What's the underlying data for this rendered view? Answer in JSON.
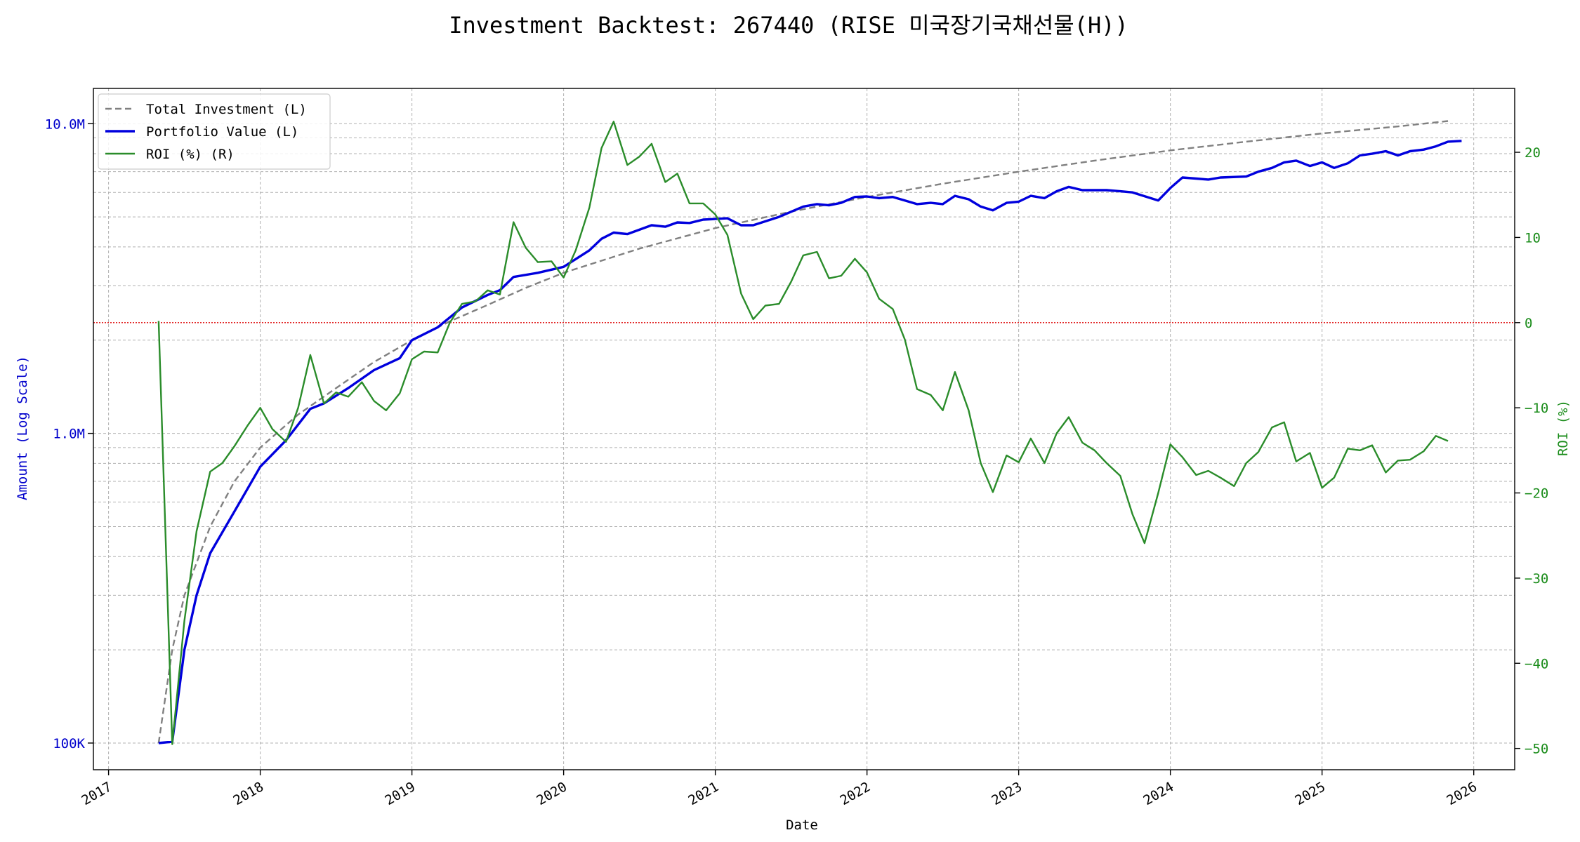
{
  "chart_data": {
    "type": "line",
    "title": "Investment Backtest: 267440 (RISE 미국장기국채선물(H))",
    "xlabel": "Date",
    "ylabel_left": "Amount (Log Scale)",
    "ylabel_right": "ROI (%)",
    "y_left_scale": "log",
    "y_left_ticks": [
      {
        "value": 100000,
        "label": "100K"
      },
      {
        "value": 1000000,
        "label": "1.0M"
      },
      {
        "value": 10000000,
        "label": "10.0M"
      }
    ],
    "y_left_range": [
      82000,
      13000000
    ],
    "y_right_ticks": [
      -50,
      -40,
      -30,
      -20,
      -10,
      0,
      10,
      20
    ],
    "y_right_range": [
      -52.5,
      27.5
    ],
    "x_ticks": [
      "2017",
      "2018",
      "2019",
      "2020",
      "2021",
      "2022",
      "2023",
      "2024",
      "2025",
      "2026"
    ],
    "x_range": [
      2016.9,
      2026.27
    ],
    "grid": true,
    "legend_position": "upper-left",
    "zero_reference_line": {
      "roi": 0,
      "color": "#dd0000"
    },
    "series": [
      {
        "name": "Total Investment (L)",
        "axis": "left",
        "color": "#808080",
        "style": "dashed",
        "points": [
          [
            2017.33,
            100000
          ],
          [
            2017.42,
            200000
          ],
          [
            2017.5,
            300000
          ],
          [
            2017.67,
            500000
          ],
          [
            2017.83,
            700000
          ],
          [
            2018.0,
            900000
          ],
          [
            2018.25,
            1150000
          ],
          [
            2018.5,
            1400000
          ],
          [
            2018.75,
            1700000
          ],
          [
            2019.0,
            2000000
          ],
          [
            2019.25,
            2300000
          ],
          [
            2019.5,
            2600000
          ],
          [
            2019.75,
            2950000
          ],
          [
            2020.0,
            3300000
          ],
          [
            2020.5,
            3950000
          ],
          [
            2021.0,
            4600000
          ],
          [
            2021.5,
            5200000
          ],
          [
            2022.0,
            5800000
          ],
          [
            2022.5,
            6400000
          ],
          [
            2023.0,
            7000000
          ],
          [
            2023.5,
            7600000
          ],
          [
            2024.0,
            8200000
          ],
          [
            2024.5,
            8750000
          ],
          [
            2025.0,
            9300000
          ],
          [
            2025.5,
            9800000
          ],
          [
            2025.83,
            10200000
          ]
        ]
      },
      {
        "name": "Portfolio Value (L)",
        "axis": "left",
        "color": "#0000dd",
        "style": "solid",
        "points": [
          [
            2017.33,
            100000
          ],
          [
            2017.42,
            101000
          ],
          [
            2017.5,
            200000
          ],
          [
            2017.58,
            300000
          ],
          [
            2017.67,
            410000
          ],
          [
            2017.83,
            560000
          ],
          [
            2018.0,
            780000
          ],
          [
            2018.17,
            950000
          ],
          [
            2018.33,
            1200000
          ],
          [
            2018.42,
            1250000
          ],
          [
            2018.58,
            1400000
          ],
          [
            2018.75,
            1600000
          ],
          [
            2018.92,
            1750000
          ],
          [
            2019.0,
            2000000
          ],
          [
            2019.17,
            2200000
          ],
          [
            2019.33,
            2550000
          ],
          [
            2019.5,
            2800000
          ],
          [
            2019.58,
            2900000
          ],
          [
            2019.67,
            3200000
          ],
          [
            2019.83,
            3300000
          ],
          [
            2020.0,
            3450000
          ],
          [
            2020.17,
            3900000
          ],
          [
            2020.25,
            4250000
          ],
          [
            2020.33,
            4450000
          ],
          [
            2020.42,
            4400000
          ],
          [
            2020.58,
            4700000
          ],
          [
            2020.67,
            4650000
          ],
          [
            2020.75,
            4800000
          ],
          [
            2020.83,
            4780000
          ],
          [
            2020.92,
            4900000
          ],
          [
            2021.08,
            4950000
          ],
          [
            2021.17,
            4700000
          ],
          [
            2021.25,
            4700000
          ],
          [
            2021.42,
            5000000
          ],
          [
            2021.58,
            5400000
          ],
          [
            2021.67,
            5500000
          ],
          [
            2021.75,
            5450000
          ],
          [
            2021.83,
            5550000
          ],
          [
            2021.92,
            5800000
          ],
          [
            2022.0,
            5820000
          ],
          [
            2022.08,
            5750000
          ],
          [
            2022.17,
            5800000
          ],
          [
            2022.25,
            5650000
          ],
          [
            2022.33,
            5500000
          ],
          [
            2022.42,
            5550000
          ],
          [
            2022.5,
            5500000
          ],
          [
            2022.58,
            5850000
          ],
          [
            2022.67,
            5700000
          ],
          [
            2022.75,
            5400000
          ],
          [
            2022.83,
            5250000
          ],
          [
            2022.92,
            5550000
          ],
          [
            2023.0,
            5600000
          ],
          [
            2023.08,
            5850000
          ],
          [
            2023.17,
            5750000
          ],
          [
            2023.25,
            6050000
          ],
          [
            2023.33,
            6250000
          ],
          [
            2023.42,
            6100000
          ],
          [
            2023.58,
            6100000
          ],
          [
            2023.67,
            6050000
          ],
          [
            2023.75,
            6000000
          ],
          [
            2023.92,
            5650000
          ],
          [
            2024.0,
            6200000
          ],
          [
            2024.08,
            6700000
          ],
          [
            2024.17,
            6650000
          ],
          [
            2024.25,
            6600000
          ],
          [
            2024.33,
            6700000
          ],
          [
            2024.5,
            6750000
          ],
          [
            2024.58,
            7000000
          ],
          [
            2024.67,
            7200000
          ],
          [
            2024.75,
            7500000
          ],
          [
            2024.83,
            7600000
          ],
          [
            2024.92,
            7300000
          ],
          [
            2025.0,
            7500000
          ],
          [
            2025.08,
            7200000
          ],
          [
            2025.17,
            7450000
          ],
          [
            2025.25,
            7900000
          ],
          [
            2025.33,
            8000000
          ],
          [
            2025.42,
            8150000
          ],
          [
            2025.5,
            7900000
          ],
          [
            2025.58,
            8150000
          ],
          [
            2025.67,
            8250000
          ],
          [
            2025.75,
            8450000
          ],
          [
            2025.83,
            8750000
          ],
          [
            2025.92,
            8800000
          ]
        ]
      },
      {
        "name": "ROI (%) (R)",
        "axis": "right",
        "color": "#2a8c2a",
        "style": "solid",
        "points": [
          [
            2017.33,
            0.2
          ],
          [
            2017.42,
            -49.5
          ],
          [
            2017.5,
            -35
          ],
          [
            2017.58,
            -24.5
          ],
          [
            2017.67,
            -17.5
          ],
          [
            2017.75,
            -16.5
          ],
          [
            2017.83,
            -14.5
          ],
          [
            2017.92,
            -12
          ],
          [
            2018.0,
            -10
          ],
          [
            2018.08,
            -12.5
          ],
          [
            2018.17,
            -14
          ],
          [
            2018.25,
            -10
          ],
          [
            2018.33,
            -3.8
          ],
          [
            2018.42,
            -9.5
          ],
          [
            2018.5,
            -8.2
          ],
          [
            2018.58,
            -8.7
          ],
          [
            2018.67,
            -7
          ],
          [
            2018.75,
            -9.2
          ],
          [
            2018.83,
            -10.3
          ],
          [
            2018.92,
            -8.3
          ],
          [
            2019.0,
            -4.3
          ],
          [
            2019.08,
            -3.4
          ],
          [
            2019.17,
            -3.5
          ],
          [
            2019.25,
            0
          ],
          [
            2019.33,
            2.2
          ],
          [
            2019.42,
            2.5
          ],
          [
            2019.5,
            3.8
          ],
          [
            2019.58,
            3.3
          ],
          [
            2019.67,
            11.8
          ],
          [
            2019.75,
            8.8
          ],
          [
            2019.83,
            7.1
          ],
          [
            2019.92,
            7.2
          ],
          [
            2020.0,
            5.3
          ],
          [
            2020.08,
            8.5
          ],
          [
            2020.17,
            13.5
          ],
          [
            2020.25,
            20.5
          ],
          [
            2020.33,
            23.6
          ],
          [
            2020.42,
            18.5
          ],
          [
            2020.5,
            19.5
          ],
          [
            2020.58,
            21
          ],
          [
            2020.67,
            16.5
          ],
          [
            2020.75,
            17.5
          ],
          [
            2020.83,
            14
          ],
          [
            2020.92,
            14
          ],
          [
            2021.0,
            12.7
          ],
          [
            2021.08,
            10.3
          ],
          [
            2021.17,
            3.4
          ],
          [
            2021.25,
            0.4
          ],
          [
            2021.33,
            2
          ],
          [
            2021.42,
            2.2
          ],
          [
            2021.5,
            4.8
          ],
          [
            2021.58,
            7.9
          ],
          [
            2021.67,
            8.3
          ],
          [
            2021.75,
            5.2
          ],
          [
            2021.83,
            5.5
          ],
          [
            2021.92,
            7.5
          ],
          [
            2022.0,
            5.9
          ],
          [
            2022.08,
            2.8
          ],
          [
            2022.17,
            1.6
          ],
          [
            2022.25,
            -2
          ],
          [
            2022.33,
            -7.8
          ],
          [
            2022.42,
            -8.5
          ],
          [
            2022.5,
            -10.3
          ],
          [
            2022.58,
            -5.8
          ],
          [
            2022.67,
            -10.3
          ],
          [
            2022.75,
            -16.5
          ],
          [
            2022.83,
            -19.9
          ],
          [
            2022.92,
            -15.6
          ],
          [
            2023.0,
            -16.4
          ],
          [
            2023.08,
            -13.6
          ],
          [
            2023.17,
            -16.5
          ],
          [
            2023.25,
            -13
          ],
          [
            2023.33,
            -11.1
          ],
          [
            2023.42,
            -14.1
          ],
          [
            2023.5,
            -15
          ],
          [
            2023.58,
            -16.5
          ],
          [
            2023.67,
            -18
          ],
          [
            2023.75,
            -22.5
          ],
          [
            2023.83,
            -25.9
          ],
          [
            2023.92,
            -20
          ],
          [
            2024.0,
            -14.3
          ],
          [
            2024.08,
            -15.8
          ],
          [
            2024.17,
            -17.9
          ],
          [
            2024.25,
            -17.4
          ],
          [
            2024.33,
            -18.2
          ],
          [
            2024.42,
            -19.2
          ],
          [
            2024.5,
            -16.5
          ],
          [
            2024.58,
            -15.2
          ],
          [
            2024.67,
            -12.3
          ],
          [
            2024.75,
            -11.7
          ],
          [
            2024.83,
            -16.3
          ],
          [
            2024.92,
            -15.3
          ],
          [
            2025.0,
            -19.4
          ],
          [
            2025.08,
            -18.2
          ],
          [
            2025.17,
            -14.8
          ],
          [
            2025.25,
            -15
          ],
          [
            2025.33,
            -14.4
          ],
          [
            2025.42,
            -17.6
          ],
          [
            2025.5,
            -16.2
          ],
          [
            2025.58,
            -16.1
          ],
          [
            2025.67,
            -15.1
          ],
          [
            2025.75,
            -13.3
          ],
          [
            2025.83,
            -13.9
          ]
        ]
      }
    ]
  }
}
